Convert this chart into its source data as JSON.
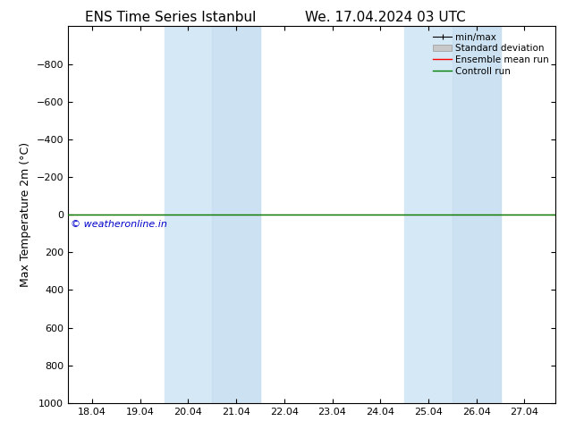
{
  "title_left": "ENS Time Series Istanbul",
  "title_right": "We. 17.04.2024 03 UTC",
  "ylabel": "Max Temperature 2m (°C)",
  "ylim_bottom": 1000,
  "ylim_top": -1000,
  "yticks": [
    -800,
    -600,
    -400,
    -200,
    0,
    200,
    400,
    600,
    800,
    1000
  ],
  "xtick_labels": [
    "18.04",
    "19.04",
    "20.04",
    "21.04",
    "22.04",
    "23.04",
    "24.04",
    "25.04",
    "26.04",
    "27.04"
  ],
  "xtick_positions": [
    1,
    2,
    3,
    4,
    5,
    6,
    7,
    8,
    9,
    10
  ],
  "xlim": [
    0.5,
    10.65
  ],
  "shaded_bands": [
    {
      "x_start": 2.52,
      "x_end": 3.5,
      "color": "#dceef8"
    },
    {
      "x_start": 3.5,
      "x_end": 4.5,
      "color": "#c8e0f2"
    },
    {
      "x_start": 7.52,
      "x_end": 8.5,
      "color": "#dceef8"
    },
    {
      "x_start": 8.5,
      "x_end": 9.5,
      "color": "#c8e0f2"
    }
  ],
  "control_run_y": 0,
  "ensemble_mean_y": 0,
  "control_run_color": "#008000",
  "ensemble_mean_color": "#ff0000",
  "std_dev_color": "#c8c8c8",
  "minmax_color": "#000000",
  "watermark": "© weatheronline.in",
  "watermark_color": "#0000cc",
  "background_color": "#ffffff",
  "plot_bg_color": "#ffffff",
  "legend_labels": [
    "min/max",
    "Standard deviation",
    "Ensemble mean run",
    "Controll run"
  ],
  "legend_colors": [
    "#000000",
    "#c0c0c0",
    "#ff0000",
    "#008000"
  ],
  "title_fontsize": 11,
  "tick_fontsize": 8,
  "ylabel_fontsize": 9
}
